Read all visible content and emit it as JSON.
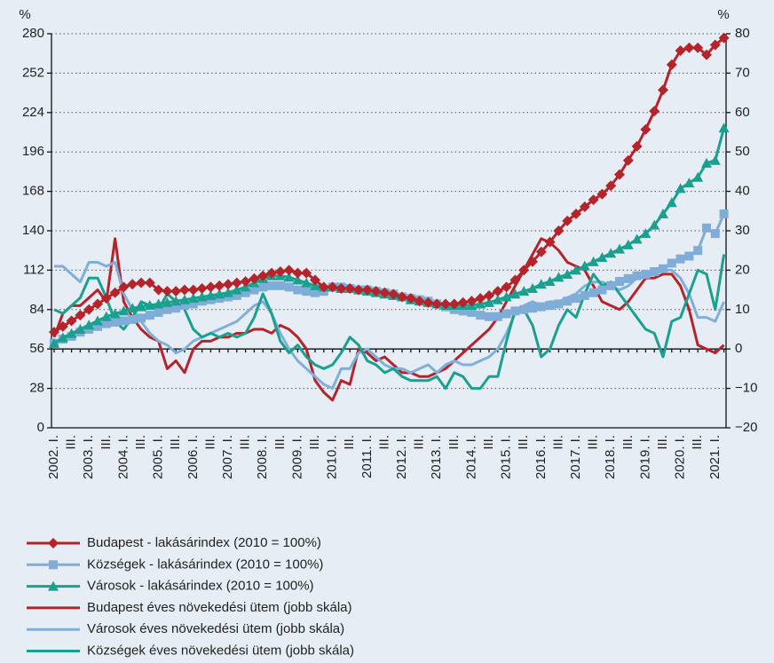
{
  "chart_data": {
    "type": "line",
    "y_label": "%",
    "y2_label": "%",
    "categories": [
      "2002. I.",
      null,
      "III.",
      null,
      "2003. I.",
      null,
      "III.",
      null,
      "2004. I.",
      null,
      "III.",
      null,
      "2005. I.",
      null,
      "III.",
      null,
      "2006. I.",
      null,
      "III.",
      null,
      "2007. I.",
      null,
      "III.",
      null,
      "2008. I.",
      null,
      "III.",
      null,
      "2009. I.",
      null,
      "III.",
      null,
      "2010. I.",
      null,
      "III.",
      null,
      "2011. I.",
      null,
      "III.",
      null,
      "2012. I.",
      null,
      "III.",
      null,
      "2013. I.",
      null,
      "III.",
      null,
      "2014. I.",
      null,
      "III.",
      null,
      "2015. I.",
      null,
      "III.",
      null,
      "2016. I.",
      null,
      "III.",
      null,
      "2017. I.",
      null,
      "III.",
      null,
      "2018. I.",
      null,
      "III.",
      null,
      "2019. I.",
      null,
      "III.",
      null,
      "2020. I.",
      null,
      "III.",
      null,
      "2021. I.",
      null
    ],
    "ylim": [
      0,
      280
    ],
    "yticks": [
      0,
      28,
      56,
      84,
      112,
      140,
      168,
      196,
      224,
      252,
      280
    ],
    "y2lim": [
      -20,
      80
    ],
    "y2ticks": [
      {
        "value": -20,
        "label": "−20"
      },
      {
        "value": -10,
        "label": "−10"
      },
      0,
      10,
      20,
      30,
      40,
      50,
      60,
      70,
      80
    ],
    "grid": true,
    "series": [
      {
        "name": "Budapest éves növekedési ütem (jobb skála)",
        "color": "#b5232b",
        "axis": "y2",
        "marker": "none",
        "values": [
          3,
          9,
          11,
          11,
          13,
          15,
          12,
          28,
          12,
          8,
          5,
          3,
          2,
          -5,
          -3,
          -6,
          0,
          2,
          2,
          3,
          3,
          4,
          4,
          5,
          5,
          4,
          6,
          5,
          3,
          0,
          -8,
          -11,
          -13,
          -8,
          -9,
          0,
          -1,
          -3,
          -2,
          -4,
          -6,
          -6,
          -7,
          -7,
          -6,
          -5,
          -3,
          -1,
          1,
          3,
          5,
          8,
          12,
          16,
          20,
          24,
          28,
          27,
          25,
          22,
          21,
          20,
          16,
          12,
          11,
          10,
          12,
          15,
          18,
          18,
          19,
          19,
          16,
          10,
          1,
          0,
          -1,
          1
        ]
      },
      {
        "name": "Városok éves növekedési ütem (jobb skála)",
        "color": "#7fb0dc",
        "axis": "y2",
        "marker": "none",
        "values": [
          21,
          21,
          19,
          17,
          22,
          22,
          21,
          22,
          14,
          10,
          7,
          4,
          2,
          1,
          -1,
          0,
          2,
          3,
          4,
          5,
          6,
          7,
          9,
          11,
          12,
          9,
          4,
          0,
          -3,
          -5,
          -7,
          -9,
          -10,
          -5,
          -5,
          -1,
          0,
          -2,
          -4,
          -5,
          -5,
          -6,
          -5,
          -4,
          -6,
          -4,
          -3,
          -4,
          -4,
          -3,
          -2,
          0,
          4,
          9,
          11,
          12,
          11,
          12,
          12,
          13,
          14,
          16,
          17,
          17,
          16,
          15,
          16,
          18,
          19,
          20,
          20,
          20,
          18,
          14,
          8,
          8,
          7,
          12
        ]
      },
      {
        "name": "Községek éves növekedési ütem (jobb skála)",
        "color": "#1aa08f",
        "axis": "y2",
        "marker": "none",
        "values": [
          10,
          9,
          11,
          13,
          18,
          18,
          13,
          7,
          5,
          8,
          12,
          11,
          10,
          14,
          12,
          10,
          5,
          3,
          4,
          3,
          4,
          3,
          4,
          8,
          14,
          9,
          2,
          -1,
          1,
          -2,
          -4,
          -5,
          -4,
          -1,
          3,
          1,
          -3,
          -4,
          -6,
          -5,
          -7,
          -8,
          -8,
          -8,
          -7,
          -10,
          -6,
          -7,
          -10,
          -10,
          -7,
          -7,
          2,
          10,
          10,
          6,
          -2,
          0,
          6,
          10,
          8,
          14,
          19,
          16,
          17,
          14,
          11,
          8,
          5,
          4,
          -2,
          7,
          8,
          14,
          20,
          19,
          10,
          24
        ]
      },
      {
        "name": "Községek - lakásárindex (2010 = 100%)",
        "color": "#80acd8",
        "marker": "square",
        "values": [
          60,
          63,
          65,
          68,
          70,
          72,
          74,
          75,
          76,
          77,
          78,
          80,
          82,
          84,
          85,
          87,
          88,
          90,
          91,
          92,
          93,
          94,
          96,
          98,
          100,
          101,
          101,
          100,
          98,
          97,
          96,
          97,
          100,
          100,
          99,
          98,
          98,
          97,
          96,
          95,
          93,
          92,
          91,
          90,
          88,
          86,
          84,
          83,
          82,
          80,
          79,
          79,
          81,
          83,
          84,
          85,
          86,
          87,
          88,
          90,
          92,
          94,
          96,
          98,
          101,
          104,
          106,
          108,
          109,
          111,
          113,
          117,
          120,
          122,
          126,
          142,
          138,
          152
        ]
      },
      {
        "name": "Városok - lakásárindex (2010 = 100%)",
        "color": "#1aa08f",
        "marker": "triangle",
        "values": [
          60,
          64,
          67,
          70,
          73,
          76,
          79,
          81,
          83,
          85,
          86,
          87,
          88,
          89,
          90,
          91,
          92,
          93,
          94,
          95,
          96,
          98,
          100,
          103,
          106,
          108,
          108,
          107,
          105,
          103,
          101,
          100,
          100,
          99,
          99,
          98,
          97,
          96,
          95,
          94,
          93,
          91,
          90,
          89,
          88,
          87,
          87,
          87,
          87,
          88,
          89,
          91,
          93,
          95,
          97,
          99,
          102,
          104,
          107,
          109,
          112,
          115,
          118,
          121,
          124,
          127,
          130,
          134,
          138,
          144,
          152,
          160,
          170,
          174,
          178,
          188,
          190,
          213
        ]
      },
      {
        "name": "Budapest - lakásárindex (2010 = 100%)",
        "color": "#b5232b",
        "marker": "diamond",
        "values": [
          68,
          72,
          76,
          80,
          84,
          88,
          92,
          96,
          100,
          102,
          103,
          103,
          98,
          97,
          97,
          98,
          98,
          99,
          100,
          101,
          102,
          103,
          104,
          106,
          108,
          110,
          111,
          112,
          110,
          110,
          105,
          100,
          100,
          99,
          99,
          98,
          98,
          97,
          96,
          95,
          93,
          92,
          90,
          89,
          88,
          88,
          88,
          89,
          90,
          92,
          94,
          97,
          100,
          105,
          112,
          118,
          125,
          132,
          140,
          147,
          152,
          157,
          162,
          166,
          172,
          180,
          190,
          200,
          212,
          225,
          240,
          258,
          268,
          270,
          270,
          265,
          272,
          277
        ]
      }
    ],
    "legend_order": [
      5,
      3,
      4,
      0,
      1,
      2
    ]
  }
}
